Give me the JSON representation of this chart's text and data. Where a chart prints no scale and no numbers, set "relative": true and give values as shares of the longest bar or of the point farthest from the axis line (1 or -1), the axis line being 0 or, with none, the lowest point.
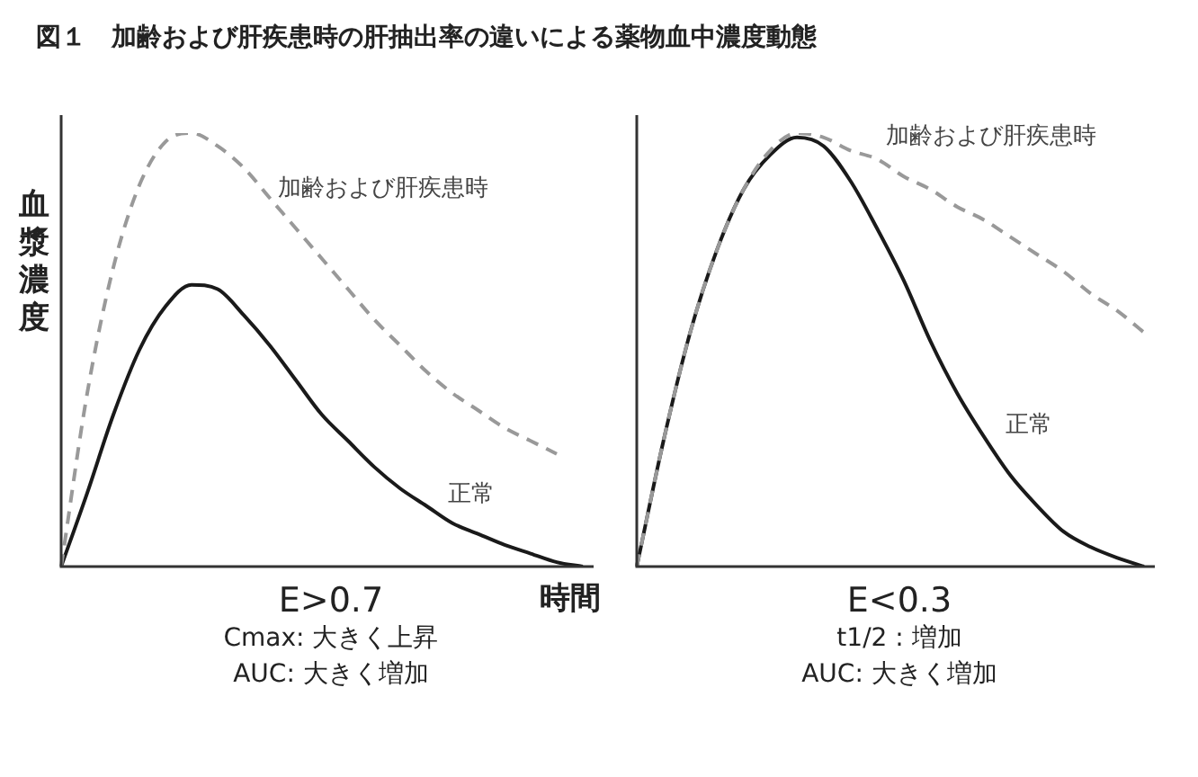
{
  "chart_data": [
    {
      "type": "line",
      "title": "図１　加齢および肝疾患時の肝抽出率の違いによる薬物血中濃度動態",
      "ylabel": "血漿濃度",
      "xlabel": "時間",
      "relative": true,
      "marker": "none",
      "categories": [
        null,
        null,
        null,
        null,
        null,
        null,
        null,
        null,
        null,
        null,
        null,
        null,
        null,
        null,
        null,
        null,
        null,
        null,
        null,
        null,
        null
      ],
      "series": [
        {
          "name": "加齢および肝疾患時",
          "color": "#999999",
          "line_style": "dashed",
          "values": [
            0,
            0.4,
            0.69,
            0.88,
            0.98,
            1.0,
            0.97,
            0.92,
            0.85,
            0.78,
            0.71,
            0.64,
            0.57,
            0.51,
            0.45,
            0.4,
            0.36,
            0.32,
            0.29,
            0.26,
            null
          ]
        },
        {
          "name": "正常",
          "color": "#1a1a1a",
          "line_style": "solid",
          "values": [
            0,
            0.17,
            0.35,
            0.5,
            0.6,
            0.65,
            0.64,
            0.58,
            0.51,
            0.43,
            0.35,
            0.29,
            0.23,
            0.18,
            0.14,
            0.1,
            0.075,
            0.05,
            0.03,
            0.01,
            0
          ]
        }
      ],
      "annotations": [
        "E>0.7",
        "Cmax: 大きく上昇",
        "AUC: 大きく増加"
      ]
    },
    {
      "type": "line",
      "relative": true,
      "marker": "none",
      "categories": [
        null,
        null,
        null,
        null,
        null,
        null,
        null,
        null,
        null,
        null,
        null,
        null,
        null,
        null,
        null,
        null,
        null,
        null,
        null,
        null
      ],
      "series": [
        {
          "name": "加齢および肝疾患時",
          "color": "#999999",
          "line_style": "dashed",
          "values": [
            0,
            0.29,
            0.54,
            0.73,
            0.87,
            0.96,
            1.0,
            0.99,
            0.96,
            0.94,
            0.9,
            0.87,
            0.83,
            0.8,
            0.76,
            0.72,
            0.68,
            0.63,
            0.59,
            0.54
          ]
        },
        {
          "name": "正常",
          "color": "#1a1a1a",
          "line_style": "solid",
          "values": [
            0,
            0.29,
            0.54,
            0.73,
            0.87,
            0.95,
            0.99,
            0.97,
            0.89,
            0.78,
            0.66,
            0.52,
            0.4,
            0.3,
            0.21,
            0.14,
            0.08,
            0.045,
            0.02,
            0
          ]
        }
      ],
      "annotations": [
        "E<0.3",
        "t1/2 : 増加",
        "AUC: 大きく増加"
      ]
    }
  ]
}
